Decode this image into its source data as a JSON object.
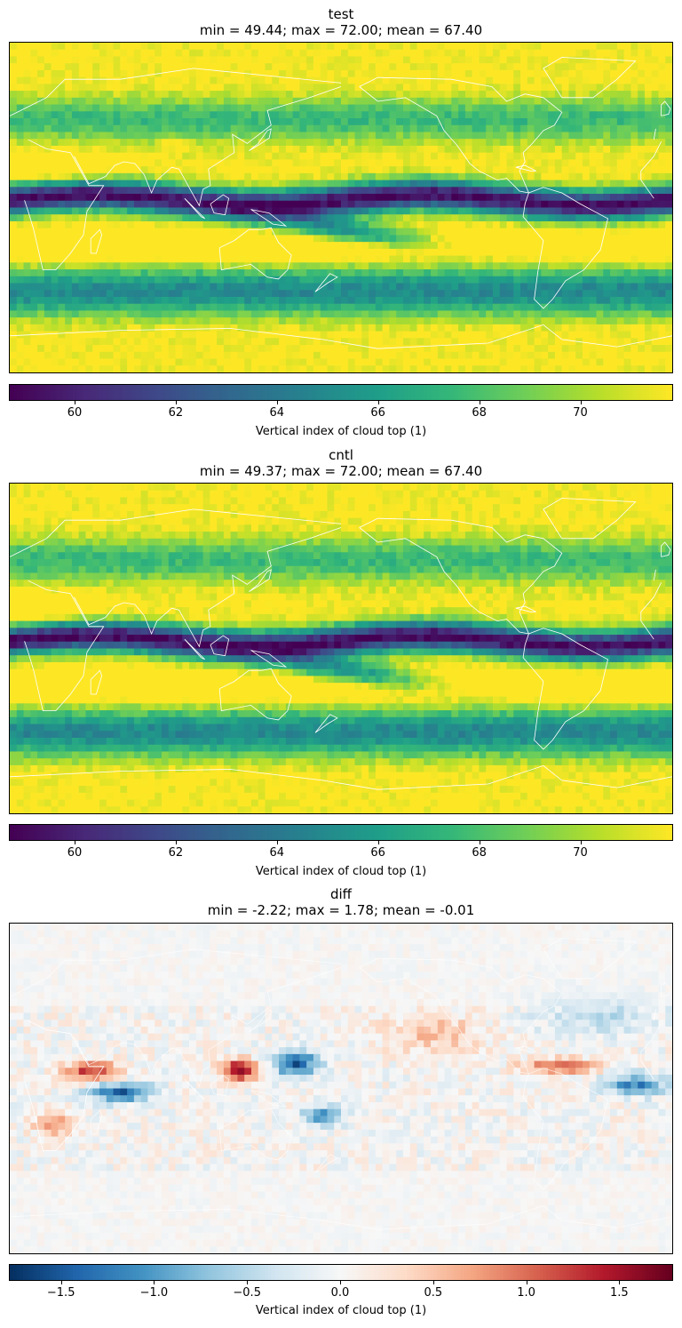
{
  "chart_data": [
    {
      "type": "heatmap",
      "title": "test",
      "subtitle": "min = 49.44; max = 72.00; mean = 67.40",
      "colorbar_label": "Vertical index of cloud top (1)",
      "colormap": "viridis",
      "vmin": 58.7,
      "vmax": 71.8,
      "colorbar_ticks": [
        "60",
        "62",
        "64",
        "66",
        "68",
        "70"
      ],
      "colorbar_tick_values": [
        60,
        62,
        64,
        66,
        68,
        70
      ],
      "stats": {
        "min": 49.44,
        "max": 72.0,
        "mean": 67.4
      }
    },
    {
      "type": "heatmap",
      "title": "cntl",
      "subtitle": "min = 49.37; max = 72.00; mean = 67.40",
      "colorbar_label": "Vertical index of cloud top (1)",
      "colormap": "viridis",
      "vmin": 58.7,
      "vmax": 71.8,
      "colorbar_ticks": [
        "60",
        "62",
        "64",
        "66",
        "68",
        "70"
      ],
      "colorbar_tick_values": [
        60,
        62,
        64,
        66,
        68,
        70
      ],
      "stats": {
        "min": 49.37,
        "max": 72.0,
        "mean": 67.4
      }
    },
    {
      "type": "heatmap",
      "title": "diff",
      "subtitle": "min = -2.22; max = 1.78; mean = -0.01",
      "colorbar_label": "Vertical index of cloud top (1)",
      "colormap": "RdBu_r",
      "vmin": -1.78,
      "vmax": 1.78,
      "colorbar_ticks": [
        "−1.5",
        "−1.0",
        "−0.5",
        "0.0",
        "0.5",
        "1.0",
        "1.5"
      ],
      "colorbar_tick_values": [
        -1.5,
        -1.0,
        -0.5,
        0.0,
        0.5,
        1.0,
        1.5
      ],
      "stats": {
        "min": -2.22,
        "max": 1.78,
        "mean": -0.01
      }
    }
  ],
  "colors": {
    "viridis_stops": [
      "#440154",
      "#482878",
      "#3e4989",
      "#31688e",
      "#26828e",
      "#1f9e89",
      "#35b779",
      "#6ece58",
      "#b5de2b",
      "#fde725"
    ],
    "rdbu_stops": [
      "#053061",
      "#2166ac",
      "#4393c3",
      "#92c5de",
      "#d1e5f0",
      "#f7f7f7",
      "#fddbc7",
      "#f4a582",
      "#d6604d",
      "#b2182b",
      "#67001f"
    ],
    "coastline": "#ffffff"
  }
}
